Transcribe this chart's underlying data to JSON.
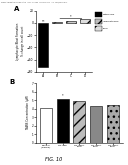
{
  "title_text": "FIG. 10",
  "header_text": "Human Aggregation Randomization   Proc. 27, 2008   March 14 of 14   U.S. 2009/0303978 P1",
  "panel_A": {
    "label": "A",
    "ylabel": "Lymphocyte Blast Formation\n% change in cell count",
    "bars": [
      {
        "label": "A",
        "value": -72,
        "color": "#000000",
        "hatch": ""
      },
      {
        "label": "B",
        "value": 1.5,
        "color": "#bbbbbb",
        "hatch": "///"
      },
      {
        "label": "C",
        "value": 3.5,
        "color": "#cccccc",
        "hatch": "///"
      },
      {
        "label": "D",
        "value": 6.0,
        "color": "#dddddd",
        "hatch": "///"
      }
    ],
    "ylim": [
      -80,
      20
    ],
    "yticks": [
      -80,
      -60,
      -40,
      -20,
      0,
      20
    ],
    "legend_items": [
      {
        "label": "Mitomycin",
        "color": "#000000",
        "hatch": ""
      },
      {
        "label": "Indomethacin",
        "color": "#bbbbbb",
        "hatch": "///"
      },
      {
        "label": "Bixin",
        "color": "#dddddd",
        "hatch": "///"
      }
    ]
  },
  "panel_B": {
    "label": "B",
    "ylabel": "TBARS Concentration (μM)",
    "bars": [
      {
        "label": "Control\n(vehicle)",
        "value": 4.1,
        "color": "#ffffff",
        "hatch": "",
        "edgecolor": "#000000"
      },
      {
        "label": "NS 398",
        "value": 5.2,
        "color": "#000000",
        "hatch": "",
        "edgecolor": "#000000"
      },
      {
        "label": "NS 398+\nBixin",
        "value": 4.9,
        "color": "#bbbbbb",
        "hatch": "///",
        "edgecolor": "#000000"
      },
      {
        "label": "NS 398+\nBixin",
        "value": 4.3,
        "color": "#888888",
        "hatch": "",
        "edgecolor": "#000000"
      },
      {
        "label": "NS 398+\nBixin",
        "value": 4.5,
        "color": "#aaaaaa",
        "hatch": "...",
        "edgecolor": "#000000"
      }
    ],
    "ylim": [
      0,
      7
    ],
    "yticks": [
      0,
      1,
      2,
      3,
      4,
      5,
      6,
      7
    ]
  },
  "background_color": "#ffffff"
}
